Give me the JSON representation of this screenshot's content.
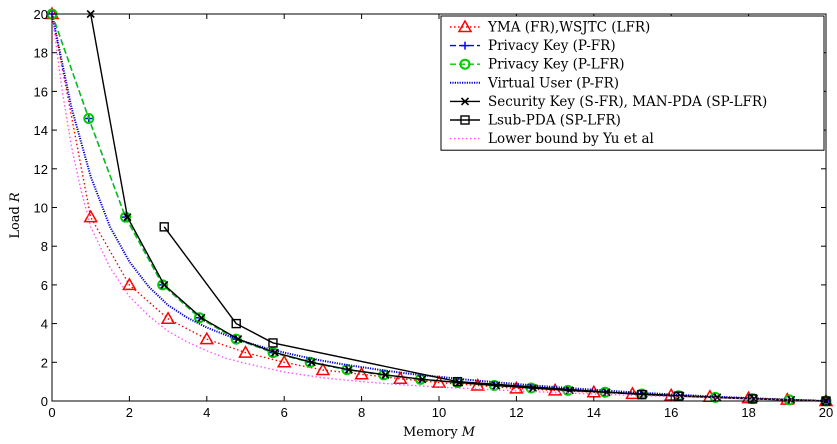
{
  "chart_data": {
    "type": "line",
    "title": "",
    "xlabel": "Memory",
    "xlabel_var": "M",
    "ylabel": "Load",
    "ylabel_var": "R",
    "xlim": [
      0,
      20
    ],
    "ylim": [
      0,
      20
    ],
    "xticks": [
      0,
      2,
      4,
      6,
      8,
      10,
      12,
      14,
      16,
      18,
      20
    ],
    "yticks": [
      0,
      2,
      4,
      6,
      8,
      10,
      12,
      14,
      16,
      18,
      20
    ],
    "grid": false,
    "legend_position": "top-right",
    "series": [
      {
        "name": "YMA (FR),WSJTC (LFR)",
        "color": "#ff0000",
        "dash": "dotted",
        "marker": "triangle",
        "x": [
          0,
          1,
          2,
          3,
          4,
          5,
          6,
          7,
          8,
          9,
          10,
          11,
          12,
          13,
          14,
          15,
          16,
          17,
          18,
          19,
          20
        ],
        "y": [
          20,
          9.5,
          6.0,
          4.25,
          3.2,
          2.5,
          2.0,
          1.6,
          1.38,
          1.15,
          0.95,
          0.8,
          0.65,
          0.55,
          0.45,
          0.37,
          0.29,
          0.22,
          0.15,
          0.07,
          0
        ]
      },
      {
        "name": "Privacy Key (P-FR)",
        "color": "#0000ff",
        "dash": "dashed",
        "marker": "plus",
        "x": [
          0,
          0.95,
          1.9,
          2.86,
          3.81,
          4.76,
          5.71,
          6.67,
          7.62,
          8.57,
          9.52,
          10.48,
          11.43,
          12.38,
          13.33,
          14.29,
          15.24,
          16.19,
          17.14,
          18.1,
          19.05,
          20
        ],
        "y": [
          20,
          14.6,
          9.5,
          6.0,
          4.3,
          3.2,
          2.5,
          2.0,
          1.62,
          1.35,
          1.12,
          0.95,
          0.8,
          0.67,
          0.55,
          0.45,
          0.36,
          0.27,
          0.19,
          0.12,
          0.06,
          0
        ]
      },
      {
        "name": "Privacy Key (P-LFR)",
        "color": "#00cc00",
        "dash": "dashed",
        "marker": "circle",
        "x": [
          0,
          0.95,
          1.9,
          2.86,
          3.81,
          4.76,
          5.71,
          6.67,
          7.62,
          8.57,
          9.52,
          10.48,
          11.43,
          12.38,
          13.33,
          14.29,
          15.24,
          16.19,
          17.14,
          18.1,
          19.05,
          20
        ],
        "y": [
          20,
          14.6,
          9.5,
          6.0,
          4.3,
          3.2,
          2.5,
          2.0,
          1.62,
          1.35,
          1.12,
          0.95,
          0.8,
          0.67,
          0.55,
          0.45,
          0.36,
          0.27,
          0.19,
          0.12,
          0.06,
          0
        ]
      },
      {
        "name": "Virtual User (P-FR)",
        "color": "#0000cc",
        "dash": "densedot",
        "marker": "dot",
        "x": [
          0,
          0.5,
          1,
          1.5,
          2,
          2.5,
          3,
          3.5,
          4,
          4.5,
          5,
          5.5,
          6,
          6.5,
          7,
          7.5,
          8,
          8.5,
          9,
          9.5,
          10,
          11,
          12,
          13,
          14,
          15,
          16,
          17,
          18,
          19,
          20
        ],
        "y": [
          20,
          15.2,
          11.6,
          9.0,
          7.2,
          5.9,
          4.95,
          4.3,
          3.8,
          3.4,
          3.05,
          2.75,
          2.5,
          2.28,
          2.08,
          1.9,
          1.75,
          1.6,
          1.47,
          1.35,
          1.25,
          1.05,
          0.88,
          0.72,
          0.58,
          0.45,
          0.34,
          0.24,
          0.15,
          0.07,
          0
        ]
      },
      {
        "name": "Security Key (S-FR), MAN-PDA (SP-LFR)",
        "color": "#000000",
        "dash": "solid",
        "marker": "x",
        "x": [
          1,
          1.95,
          2.9,
          3.86,
          4.81,
          5.76,
          6.71,
          7.67,
          8.62,
          9.57,
          10.52,
          11.48,
          12.43,
          13.38,
          14.33,
          15.29,
          16.24,
          17.19,
          18.14,
          19.1,
          20
        ],
        "y": [
          20,
          9.5,
          6.0,
          4.3,
          3.2,
          2.5,
          2.0,
          1.62,
          1.35,
          1.12,
          0.95,
          0.8,
          0.67,
          0.55,
          0.45,
          0.36,
          0.27,
          0.19,
          0.12,
          0.06,
          0
        ]
      },
      {
        "name": "Lsub-PDA (SP-LFR)",
        "color": "#000000",
        "dash": "solid",
        "marker": "square",
        "x": [
          2.9,
          4.76,
          5.71,
          10.48,
          15.24,
          16.19,
          18.1,
          20
        ],
        "y": [
          9.0,
          4.0,
          3.0,
          1.0,
          0.33,
          0.25,
          0.11,
          0
        ]
      },
      {
        "name": "Lower bound by Yu et al",
        "color": "#ff55ff",
        "dash": "dotted",
        "marker": "none",
        "x": [
          0,
          0.25,
          0.5,
          0.75,
          1,
          1.5,
          2,
          2.5,
          3,
          3.5,
          4,
          4.5,
          5,
          6,
          7,
          8,
          9,
          10,
          11,
          12,
          13,
          14,
          15,
          16,
          17,
          18,
          19,
          20
        ],
        "y": [
          20,
          16.2,
          13.2,
          10.9,
          9.0,
          6.9,
          5.4,
          4.4,
          3.6,
          3.05,
          2.6,
          2.2,
          1.95,
          1.5,
          1.2,
          1.0,
          0.85,
          0.72,
          0.62,
          0.52,
          0.44,
          0.36,
          0.29,
          0.23,
          0.17,
          0.11,
          0.05,
          0
        ]
      }
    ]
  }
}
